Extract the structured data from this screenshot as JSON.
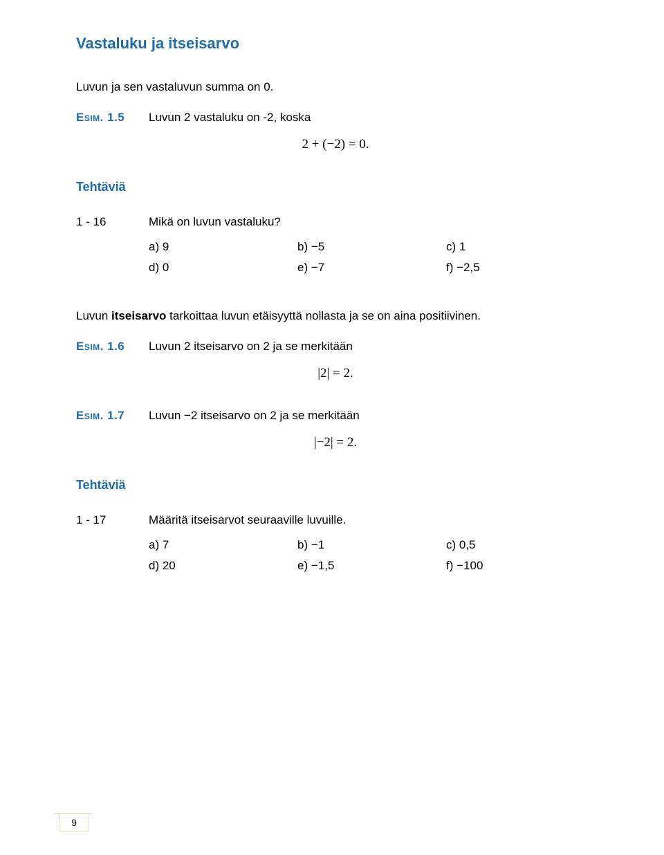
{
  "section_title": "Vastaluku ja itseisarvo",
  "intro_text": "Luvun ja sen vastaluvun summa on 0.",
  "esim_1_5": {
    "label": "Esim. 1.5",
    "text": "Luvun 2 vastaluku on -2, koska",
    "math": "2 + (−2) = 0."
  },
  "tehtaviä_label": "Tehtäviä",
  "ex_1_16": {
    "num": "1 - 16",
    "prompt": "Mikä on luvun vastaluku?",
    "rows": [
      {
        "a": "a) 9",
        "b": "b) −5",
        "c": "c) 1"
      },
      {
        "a": "d) 0",
        "b": "e) −7",
        "c": "f) −2,5"
      }
    ]
  },
  "itseisarvo_text_pre": "Luvun ",
  "itseisarvo_bold": "itseisarvo",
  "itseisarvo_text_post": " tarkoittaa luvun etäisyyttä nollasta ja se on aina positiivinen.",
  "esim_1_6": {
    "label": "Esim. 1.6",
    "text": "Luvun 2 itseisarvo on 2 ja se merkitään",
    "math": "|2| = 2."
  },
  "esim_1_7": {
    "label": "Esim. 1.7",
    "text": "Luvun −2 itseisarvo on 2 ja se merkitään",
    "math": "|−2| = 2."
  },
  "ex_1_17": {
    "num": "1 - 17",
    "prompt": "Määritä itseisarvot seuraaville luvuille.",
    "rows": [
      {
        "a": "a) 7",
        "b": "b) −1",
        "c": "c) 0,5"
      },
      {
        "a": "d) 20",
        "b": "e) −1,5",
        "c": "f) −100"
      }
    ]
  },
  "page_number": "9",
  "colors": {
    "heading": "#1f6ca8",
    "text": "#000000",
    "pagenum_border": "#d8c7a0"
  }
}
